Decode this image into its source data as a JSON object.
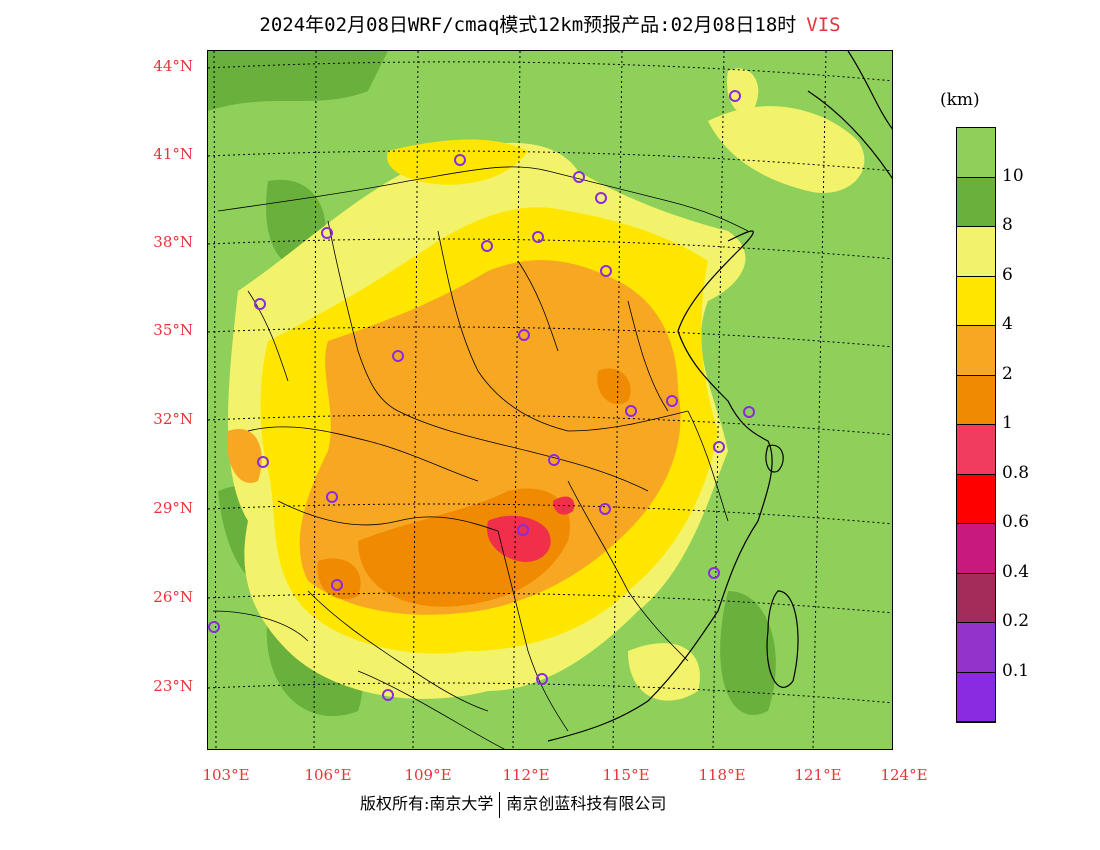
{
  "title": {
    "main": "2024年02月08日WRF/cmaq模式12km预报产品:02月08日18时",
    "variable": "VIS"
  },
  "latitude_labels": [
    "44°N",
    "41°N",
    "38°N",
    "35°N",
    "32°N",
    "29°N",
    "26°N",
    "23°N"
  ],
  "longitude_labels": [
    "103°E",
    "106°E",
    "109°E",
    "112°E",
    "115°E",
    "118°E",
    "121°E",
    "124°E"
  ],
  "colorbar": {
    "unit": "(km)",
    "labels": [
      "10",
      "8",
      "6",
      "4",
      "2",
      "1",
      "0.8",
      "0.6",
      "0.4",
      "0.2",
      "0.1"
    ],
    "colors": [
      "#8fd05a",
      "#6ab03c",
      "#f2f36a",
      "#ffe600",
      "#f8a723",
      "#f08a00",
      "#f23c5e",
      "#ff0000",
      "#c8197e",
      "#a32c5a",
      "#9333cc",
      "#8a2be2"
    ]
  },
  "map_colors": {
    "background": "#8fd05a",
    "dark_green": "#6ab03c",
    "light_yellow": "#f2f36a",
    "yellow": "#ffe600",
    "orange": "#f8a723",
    "dark_orange": "#f08a00",
    "red": "#f0304a",
    "station_marker": "#8a2be2"
  },
  "footer": {
    "left": "版权所有:南京大学",
    "right": "南京创蓝科技有限公司"
  }
}
